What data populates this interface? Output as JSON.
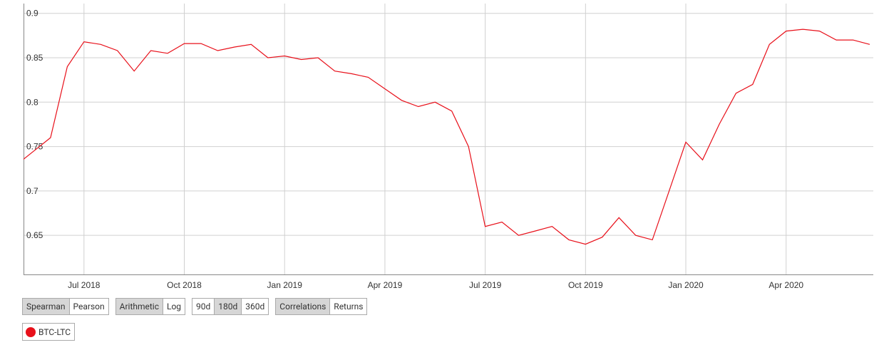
{
  "chart_data": {
    "type": "line",
    "categories": [
      null,
      null,
      null,
      null,
      "Jul 2018",
      null,
      null,
      null,
      null,
      null,
      "Oct 2018",
      null,
      null,
      null,
      null,
      null,
      "Jan 2019",
      null,
      null,
      null,
      null,
      null,
      "Apr 2019",
      null,
      null,
      null,
      null,
      null,
      "Jul 2019",
      null,
      null,
      null,
      null,
      null,
      "Oct 2019",
      null,
      null,
      null,
      null,
      null,
      "Jan 2020",
      null,
      null,
      null,
      null,
      null,
      "Apr 2020",
      null,
      null,
      null,
      null,
      null
    ],
    "series": [
      {
        "name": "BTC-LTC",
        "color": "#e8101a",
        "values": [
          0.73,
          0.745,
          0.76,
          0.84,
          0.868,
          0.865,
          0.858,
          0.835,
          0.858,
          0.855,
          0.866,
          0.866,
          0.858,
          0.862,
          0.865,
          0.85,
          0.852,
          0.848,
          0.85,
          0.835,
          0.832,
          0.828,
          0.815,
          0.802,
          0.795,
          0.8,
          0.79,
          0.75,
          0.66,
          0.665,
          0.65,
          0.655,
          0.66,
          0.645,
          0.64,
          0.648,
          0.67,
          0.65,
          0.645,
          0.7,
          0.755,
          0.735,
          0.775,
          0.81,
          0.82,
          0.865,
          0.88,
          0.882,
          0.88,
          0.87,
          0.87,
          0.865
        ]
      }
    ],
    "ylim": [
      0.606,
      0.911
    ],
    "yticks": [
      0.65,
      0.7,
      0.75,
      0.8,
      0.85,
      0.9
    ],
    "grid": true
  },
  "controls": [
    {
      "buttons": [
        "Spearman",
        "Pearson"
      ],
      "active": 0
    },
    {
      "buttons": [
        "Arithmetic",
        "Log"
      ],
      "active": 0
    },
    {
      "buttons": [
        "90d",
        "180d",
        "360d"
      ],
      "active": 1
    },
    {
      "buttons": [
        "Correlations",
        "Returns"
      ],
      "active": 0
    }
  ]
}
